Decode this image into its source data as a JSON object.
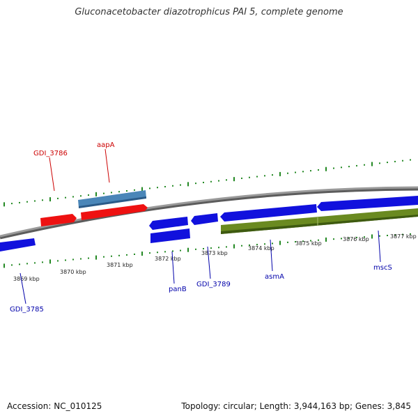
{
  "title": "Gluconacetobacter diazotrophicus PAI 5, complete genome",
  "footer": {
    "accession": "Accession: NC_010125",
    "summary": "Topology: circular; Length: 3,944,163 bp; Genes: 3,845"
  },
  "colors": {
    "forward_gene": "#ee1111",
    "forward_rna": "#4a86b8",
    "reverse_gene": "#1111dd",
    "reverse_operon": "#6a8a20",
    "backbone": "#8a8a8a",
    "gc_ticks": "#228822",
    "forward_label": "#cc0000",
    "reverse_label": "#0000aa"
  },
  "kbp_ticks": [
    "3869 kbp",
    "3870 kbp",
    "3871 kbp",
    "3872 kbp",
    "3873 kbp",
    "3874 kbp",
    "3875 kbp",
    "3876 kbp",
    "3877 kbp"
  ],
  "genes": [
    {
      "label": "GDI_3786",
      "strand": "forward"
    },
    {
      "label": "aapA",
      "strand": "forward"
    },
    {
      "label": "GDI_3785",
      "strand": "reverse"
    },
    {
      "label": "panB",
      "strand": "reverse"
    },
    {
      "label": "GDI_3789",
      "strand": "reverse"
    },
    {
      "label": "asmA",
      "strand": "reverse"
    },
    {
      "label": "mscS",
      "strand": "reverse"
    }
  ]
}
